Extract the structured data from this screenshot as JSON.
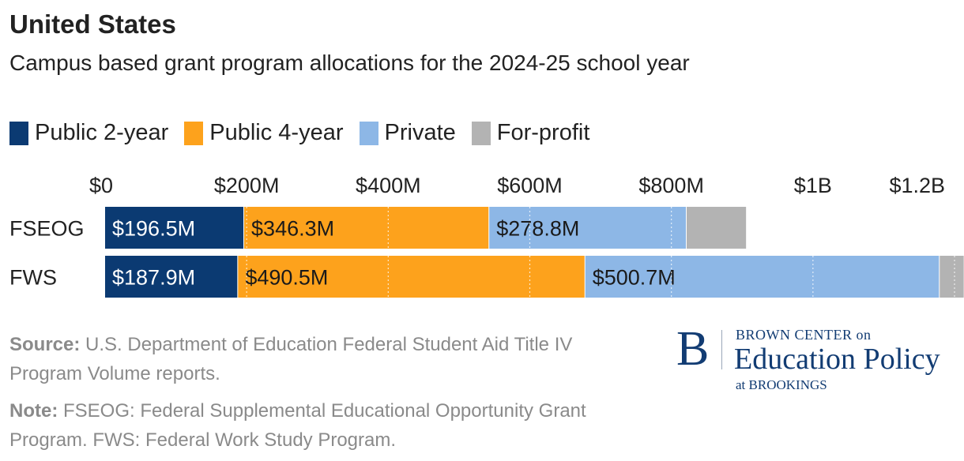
{
  "header": {
    "title": "United States",
    "subtitle": "Campus based grant program allocations for the 2024-25 school year"
  },
  "legend": [
    {
      "label": "Public 2-year",
      "color": "#0b3a72"
    },
    {
      "label": "Public 4-year",
      "color": "#fda21c"
    },
    {
      "label": "Private",
      "color": "#8db7e6"
    },
    {
      "label": "For-profit",
      "color": "#b3b3b3"
    }
  ],
  "footer": {
    "source_label": "Source:",
    "source_text": "U.S. Department of Education Federal Student Aid Title IV Program Volume reports.",
    "note_label": "Note:",
    "note_text": "FSEOG: Federal Supplemental Educational Opportunity Grant Program. FWS: Federal Work Study Program."
  },
  "logo": {
    "letter": "B",
    "line1": "BROWN CENTER on",
    "line2": "Education Policy",
    "line3": "at BROOKINGS"
  },
  "chart_data": {
    "type": "bar",
    "orientation": "horizontal",
    "stacked": true,
    "categories": [
      "FSEOG",
      "FWS"
    ],
    "series": [
      {
        "name": "Public 2-year",
        "values": [
          196.5,
          187.9
        ],
        "labels": [
          "$196.5M",
          "$187.9M"
        ],
        "color": "#0b3a72",
        "label_color": "#ffffff"
      },
      {
        "name": "Public 4-year",
        "values": [
          346.3,
          490.5
        ],
        "labels": [
          "$346.3M",
          "$490.5M"
        ],
        "color": "#fda21c",
        "label_color": "#1a1a1a"
      },
      {
        "name": "Private",
        "values": [
          278.8,
          500.7
        ],
        "labels": [
          "$278.8M",
          "$500.7M"
        ],
        "color": "#8db7e6",
        "label_color": "#1a1a1a"
      },
      {
        "name": "For-profit",
        "values": [
          85,
          35
        ],
        "labels": [
          "",
          ""
        ],
        "color": "#b3b3b3",
        "label_color": "#1a1a1a"
      }
    ],
    "x_ticks": [
      {
        "value": 0,
        "label": "$0"
      },
      {
        "value": 200,
        "label": "$200M"
      },
      {
        "value": 400,
        "label": "$400M"
      },
      {
        "value": 600,
        "label": "$600M"
      },
      {
        "value": 800,
        "label": "$800M"
      },
      {
        "value": 1000,
        "label": "$1B"
      },
      {
        "value": 1200,
        "label": "$1.2B"
      }
    ],
    "xlim": [
      0,
      1200
    ],
    "unit": "millions of dollars",
    "grid": true,
    "legend_position": "top-left"
  }
}
